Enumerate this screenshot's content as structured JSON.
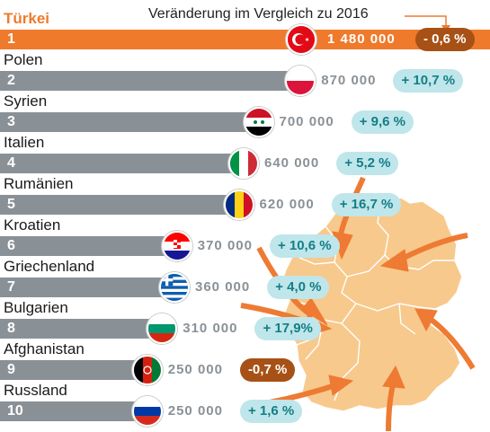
{
  "header_note": "Veränderung im Vergleich zu 2016",
  "colors": {
    "highlight": "#ef7a2c",
    "bar": "#8a9196",
    "increase_pill_bg": "#bfe6ea",
    "increase_pill_text": "#137e86",
    "decrease_pill_bg": "#a75116",
    "map_fill": "#f7c98c",
    "arrow": "#ee7a33"
  },
  "chart_data": {
    "type": "bar",
    "orientation": "horizontal",
    "categories": [
      "Türkei",
      "Polen",
      "Syrien",
      "Italien",
      "Rumänien",
      "Kroatien",
      "Griechenland",
      "Bulgarien",
      "Afghanistan",
      "Russland"
    ],
    "ranks": [
      "1",
      "2",
      "3",
      "4",
      "5",
      "6",
      "7",
      "8",
      "9",
      "10"
    ],
    "values": [
      1480000,
      870000,
      700000,
      640000,
      620000,
      370000,
      360000,
      310000,
      250000,
      250000
    ],
    "value_labels": [
      "1 480 000",
      "870 000",
      "700 000",
      "640 000",
      "620 000",
      "370 000",
      "360 000",
      "310 000",
      "250 000",
      "250 000"
    ],
    "change_labels": [
      "- 0,6 %",
      "+ 10,7 %",
      "+ 9,6 %",
      "+ 5,2 %",
      "+ 16,7 %",
      "+ 10,6 %",
      "+ 4,0 %",
      "+ 17,9%",
      "-0,7 %",
      "+ 1,6 %"
    ],
    "changes_percent": [
      -0.6,
      10.7,
      9.6,
      5.2,
      16.7,
      10.6,
      4.0,
      17.9,
      -0.7,
      1.6
    ],
    "flags": [
      "turkey-flag",
      "poland-flag",
      "syria-flag",
      "italy-flag",
      "romania-flag",
      "croatia-flag",
      "greece-flag",
      "bulgaria-flag",
      "afghanistan-flag",
      "russia-flag"
    ],
    "highlighted_category": "Türkei",
    "decoration": "map of Germany with arrows"
  }
}
